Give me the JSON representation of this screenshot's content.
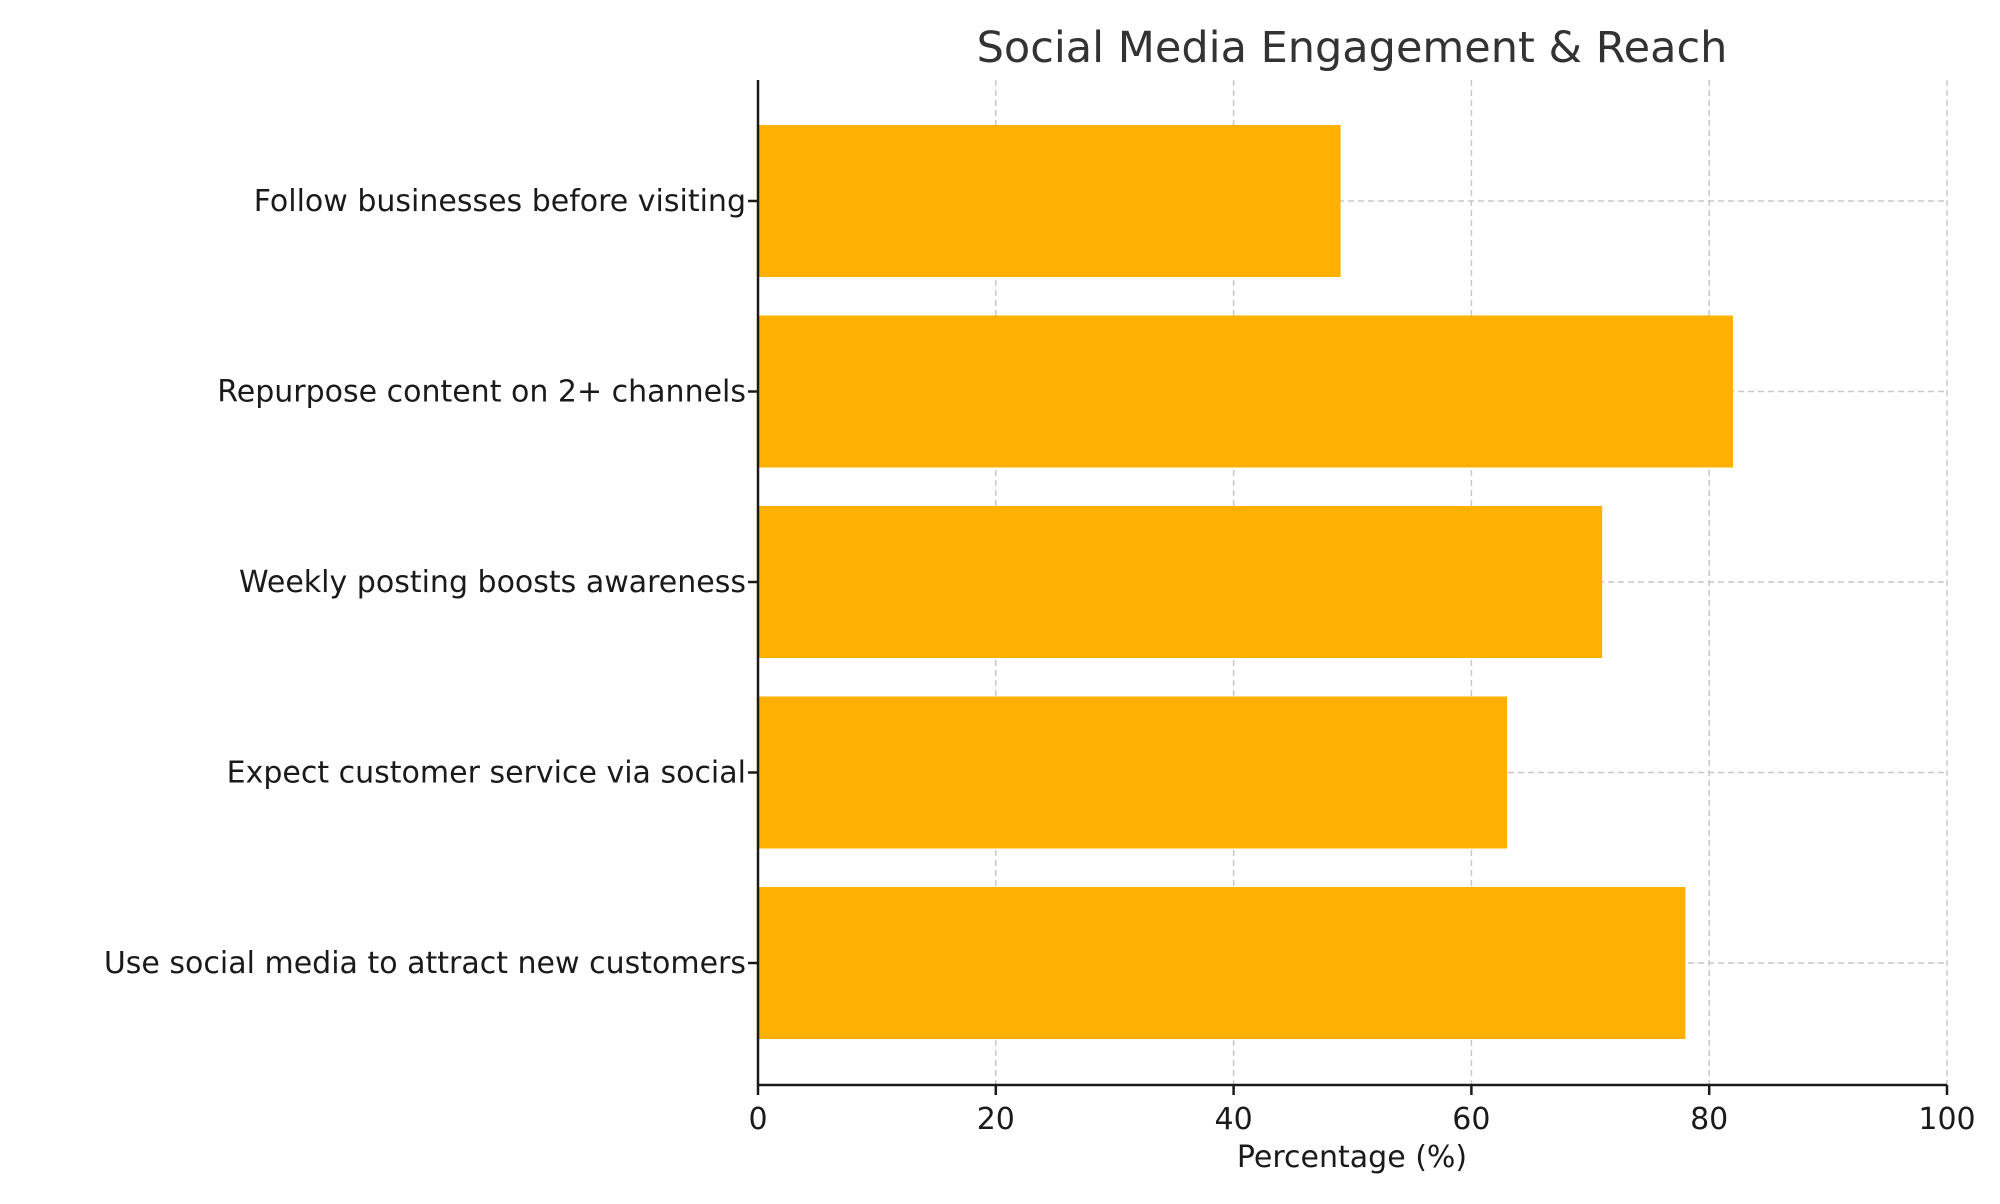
{
  "chart_data": {
    "type": "bar",
    "orientation": "horizontal",
    "title": "Social Media Engagement & Reach",
    "xlabel": "Percentage (%)",
    "ylabel": "",
    "categories": [
      "Use social media to attract new customers",
      "Expect customer service via social",
      "Weekly posting boosts awareness",
      "Repurpose content on 2+ channels",
      "Follow businesses before visiting"
    ],
    "values": [
      78,
      63,
      71,
      82,
      49
    ],
    "xlim": [
      0,
      100
    ],
    "xticks": [
      "0",
      "20",
      "40",
      "60",
      "80",
      "100"
    ],
    "grid": true,
    "bar_color": "#FFB000"
  }
}
